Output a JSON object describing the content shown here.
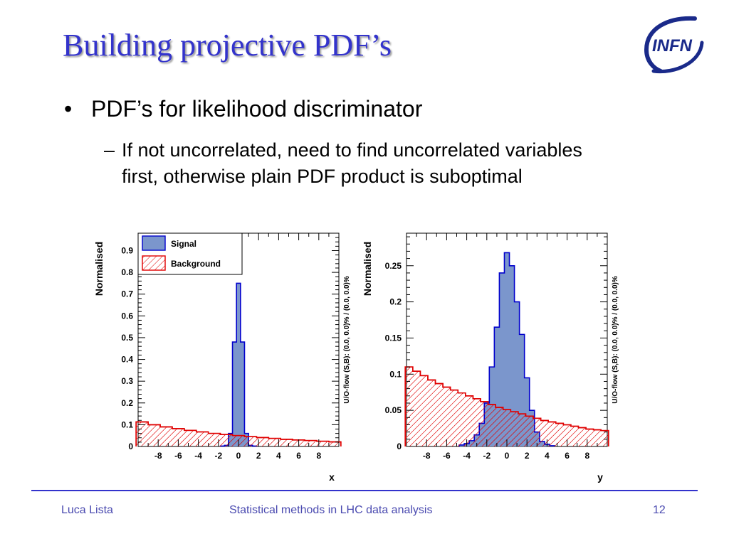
{
  "slide": {
    "title": "Building projective PDF’s",
    "logo_text": "INFN",
    "bullet_symbol": "•",
    "bullet": "PDF’s for likelihood discriminator",
    "sub_bullet_symbol": "–",
    "sub_bullet": "If not uncorrelated, need to find uncorrelated variables first, otherwise plain PDF product is suboptimal",
    "footer": {
      "author": "Luca Lista",
      "center": "Statistical methods in LHC data analysis",
      "page": "12"
    }
  },
  "colors": {
    "title": "#3333cc",
    "signal_fill": "#7b96cc",
    "signal_line": "#0000cc",
    "background_line": "#e00000",
    "footer": "#4a4ab0"
  },
  "chart_data": [
    {
      "type": "bar",
      "xlabel": "x",
      "ylabel": "Normalised",
      "side_label": "U/O-flow (S,B): (0.0, 0.0)% / (0.0, 0.0)%",
      "xlim": [
        -10,
        10
      ],
      "ylim": [
        0,
        0.98
      ],
      "xticks": [
        -8,
        -6,
        -4,
        -2,
        0,
        2,
        4,
        6,
        8
      ],
      "yticks": [
        0,
        0.1,
        0.2,
        0.3,
        0.4,
        0.5,
        0.6,
        0.7,
        0.8,
        0.9
      ],
      "ytick_labels": [
        "0",
        "0.1",
        "0.2",
        "0.3",
        "0.4",
        "0.5",
        "0.6",
        "0.7",
        "0.8",
        "0.9"
      ],
      "legend": {
        "placement": "top-left",
        "entries": [
          "Signal",
          "Background"
        ]
      },
      "series": [
        {
          "name": "Signal",
          "style": "filled",
          "x": [
            -1.6,
            -1.2,
            -0.8,
            -0.4,
            0,
            0.4,
            0.8,
            1.2,
            1.6
          ],
          "values": [
            0.002,
            0.005,
            0.06,
            0.48,
            0.75,
            0.48,
            0.06,
            0.005,
            0.002
          ]
        },
        {
          "name": "Background",
          "style": "hatched",
          "x": [
            -9.6,
            -8.4,
            -7.2,
            -6,
            -4.8,
            -3.6,
            -2.4,
            -1.2,
            0,
            1.2,
            2.4,
            3.6,
            4.8,
            6,
            7.2,
            8.4,
            9.6
          ],
          "values": [
            0.113,
            0.1,
            0.09,
            0.082,
            0.074,
            0.067,
            0.06,
            0.055,
            0.05,
            0.045,
            0.041,
            0.037,
            0.033,
            0.03,
            0.027,
            0.024,
            0.021
          ]
        }
      ]
    },
    {
      "type": "bar",
      "xlabel": "y",
      "ylabel": "Normalised",
      "side_label": "U/O-flow (S,B): (0.0, 0.0)% / (0.0, 0.0)%",
      "xlim": [
        -10,
        10
      ],
      "ylim": [
        0,
        0.295
      ],
      "xticks": [
        -8,
        -6,
        -4,
        -2,
        0,
        2,
        4,
        6,
        8
      ],
      "yticks": [
        0,
        0.05,
        0.1,
        0.15,
        0.2,
        0.25
      ],
      "ytick_labels": [
        "0",
        "0.05",
        "0.1",
        "0.15",
        "0.2",
        "0.25"
      ],
      "series": [
        {
          "name": "Signal",
          "style": "filled",
          "x": [
            -4.5,
            -4.0,
            -3.5,
            -3.0,
            -2.5,
            -2.0,
            -1.5,
            -1.0,
            -0.5,
            0,
            0.5,
            1.0,
            1.5,
            2.0,
            2.5,
            3.0,
            3.5,
            4.0,
            4.5
          ],
          "values": [
            0.002,
            0.004,
            0.008,
            0.016,
            0.032,
            0.06,
            0.11,
            0.165,
            0.24,
            0.268,
            0.25,
            0.2,
            0.155,
            0.095,
            0.05,
            0.02,
            0.007,
            0.003,
            0.001
          ]
        },
        {
          "name": "Background",
          "style": "hatched",
          "x": [
            -9.75,
            -9.0,
            -8.25,
            -7.5,
            -6.75,
            -6.0,
            -5.25,
            -4.5,
            -3.75,
            -3.0,
            -2.25,
            -1.5,
            -0.75,
            0,
            0.75,
            1.5,
            2.25,
            3.0,
            3.75,
            4.5,
            5.25,
            6.0,
            6.75,
            7.5,
            8.25,
            9.0,
            9.75
          ],
          "values": [
            0.11,
            0.104,
            0.098,
            0.092,
            0.087,
            0.082,
            0.078,
            0.074,
            0.07,
            0.066,
            0.062,
            0.058,
            0.054,
            0.051,
            0.048,
            0.045,
            0.042,
            0.039,
            0.036,
            0.034,
            0.032,
            0.03,
            0.028,
            0.026,
            0.024,
            0.023,
            0.022
          ]
        }
      ]
    }
  ]
}
